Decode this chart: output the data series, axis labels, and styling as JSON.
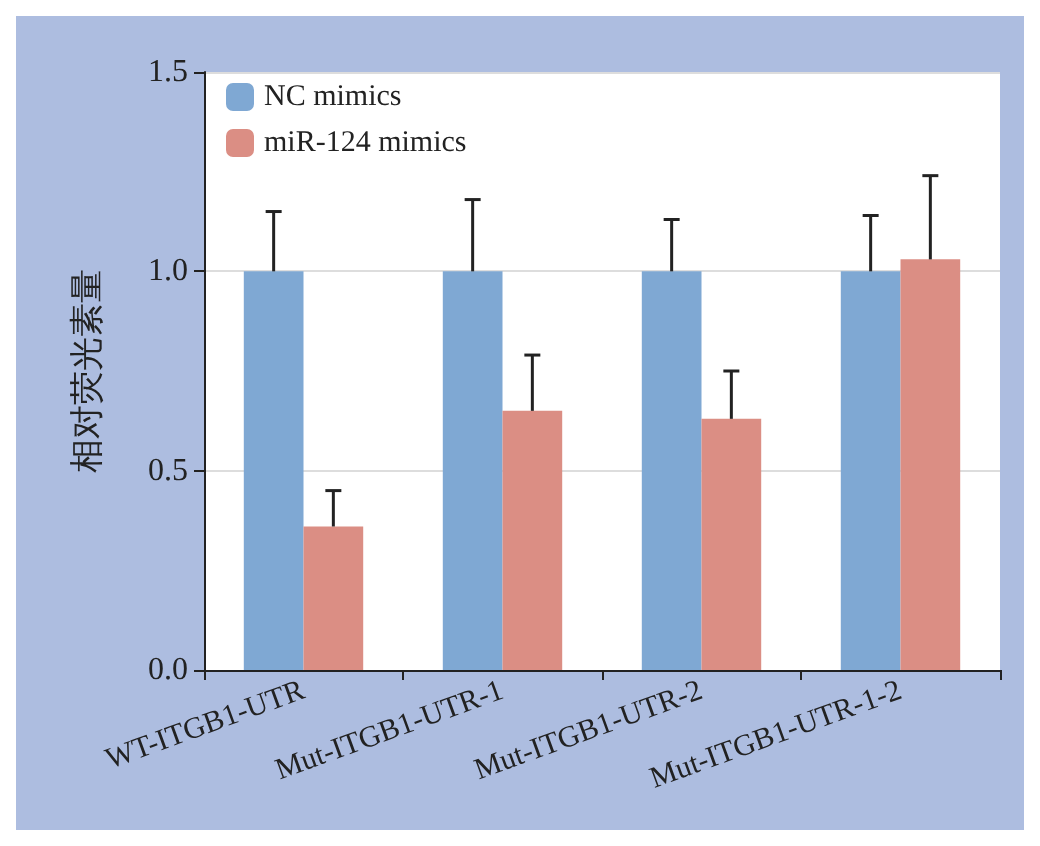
{
  "chart_data": {
    "type": "bar",
    "ylabel": "相对荧光素量",
    "categories": [
      "WT-ITGB1-UTR",
      "Mut-ITGB1-UTR-1",
      "Mut-ITGB1-UTR-2",
      "Mut-ITGB1-UTR-1-2"
    ],
    "series": [
      {
        "name": "NC mimics",
        "color": "#7fa8d3",
        "values": [
          1.0,
          1.0,
          1.0,
          1.0
        ],
        "errors": [
          [
            1.0,
            1.15
          ],
          [
            1.0,
            1.18
          ],
          [
            1.0,
            1.13
          ],
          [
            1.0,
            1.14
          ]
        ]
      },
      {
        "name": "miR-124 mimics",
        "color": "#db8e84",
        "values": [
          0.36,
          0.65,
          0.63,
          1.03
        ],
        "errors": [
          [
            0.36,
            0.45
          ],
          [
            0.65,
            0.79
          ],
          [
            0.63,
            0.75
          ],
          [
            1.03,
            1.24
          ]
        ]
      }
    ],
    "ylim": [
      0,
      1.5
    ],
    "yticks": [
      {
        "value": 0,
        "label": "0.0"
      },
      {
        "value": 0.5,
        "label": "0.5"
      },
      {
        "value": 1,
        "label": "1.0"
      },
      {
        "value": 1.5,
        "label": "1.5"
      }
    ],
    "grid": "y",
    "legend": "top left"
  }
}
